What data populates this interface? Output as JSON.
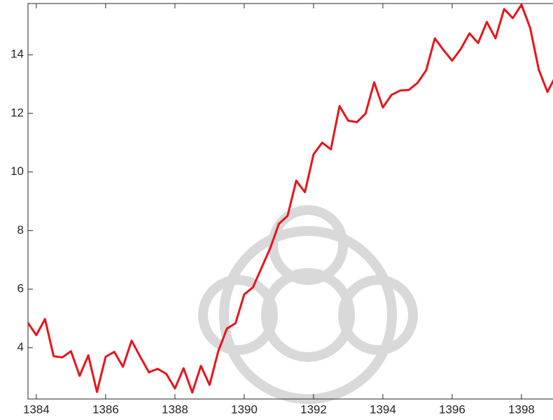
{
  "chart_data": {
    "type": "line",
    "x": [
      1383.75,
      1384,
      1384.25,
      1384.5,
      1384.75,
      1385,
      1385.25,
      1385.5,
      1385.75,
      1386,
      1386.25,
      1386.5,
      1386.75,
      1387,
      1387.25,
      1387.5,
      1387.75,
      1388,
      1388.25,
      1388.5,
      1388.75,
      1389,
      1389.25,
      1389.5,
      1389.75,
      1390,
      1390.25,
      1390.5,
      1390.75,
      1391,
      1391.25,
      1391.5,
      1391.75,
      1392,
      1392.25,
      1392.5,
      1392.75,
      1393,
      1393.25,
      1393.5,
      1393.75,
      1394,
      1394.25,
      1394.5,
      1394.75,
      1395,
      1395.25,
      1395.5,
      1395.75,
      1396,
      1396.25,
      1396.5,
      1396.75,
      1397,
      1397.25,
      1397.5,
      1397.75,
      1398,
      1398.25,
      1398.5,
      1398.75,
      1399
    ],
    "series": [
      {
        "color": "#e8141b",
        "values": [
          4.86,
          4.43,
          4.98,
          3.71,
          3.67,
          3.88,
          3.04,
          3.74,
          2.49,
          3.69,
          3.86,
          3.35,
          4.24,
          3.69,
          3.16,
          3.28,
          3.11,
          2.61,
          3.3,
          2.47,
          3.38,
          2.73,
          3.88,
          4.65,
          4.84,
          5.82,
          6.06,
          6.73,
          7.4,
          8.23,
          8.5,
          9.7,
          9.31,
          10.6,
          11.0,
          10.77,
          12.25,
          11.75,
          11.7,
          11.99,
          13.06,
          12.2,
          12.63,
          12.78,
          12.8,
          13.04,
          13.47,
          14.56,
          14.16,
          13.8,
          14.2,
          14.73,
          14.4,
          15.12,
          14.56,
          15.56,
          15.25,
          15.71,
          14.92,
          13.49,
          12.73,
          13.3
        ]
      }
    ],
    "xlim": [
      1383.76,
      1398.91
    ],
    "xticks": [
      1384,
      1386,
      1388,
      1390,
      1392,
      1394,
      1396,
      1398
    ],
    "ylim": [
      2.25,
      15.75
    ],
    "yticks": [
      4,
      6,
      8,
      10,
      12,
      14
    ]
  }
}
